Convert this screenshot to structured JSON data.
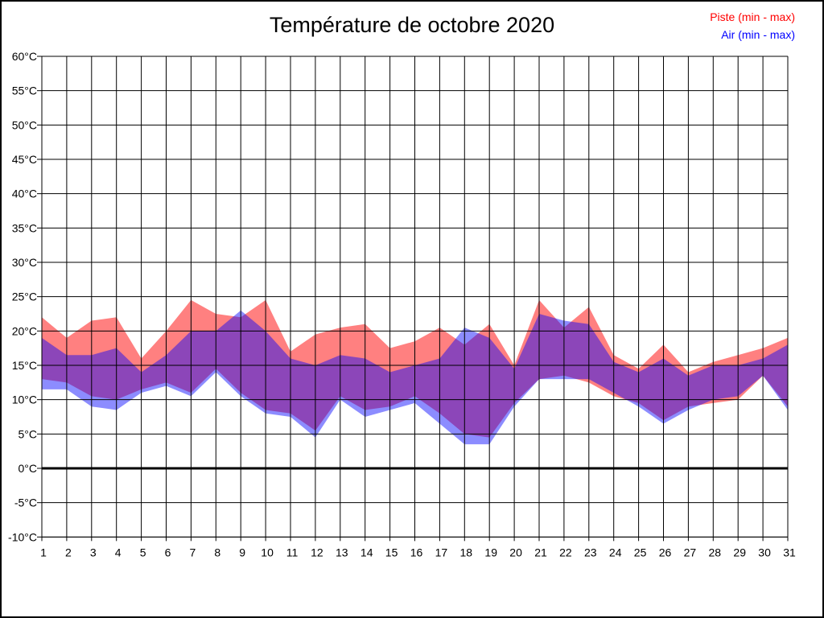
{
  "chart_data": {
    "type": "area",
    "title": "Température de octobre 2020",
    "xlabel": "",
    "ylabel": "",
    "x": [
      1,
      2,
      3,
      4,
      5,
      6,
      7,
      8,
      9,
      10,
      11,
      12,
      13,
      14,
      15,
      16,
      17,
      18,
      19,
      20,
      21,
      22,
      23,
      24,
      25,
      26,
      27,
      28,
      29,
      30,
      31
    ],
    "ylim": [
      -10,
      60
    ],
    "ytick_step": 5,
    "ytick_labels": [
      "60°C",
      "55°C",
      "50°C",
      "45°C",
      "40°C",
      "35°C",
      "30°C",
      "25°C",
      "20°C",
      "15°C",
      "10°C",
      "5°C",
      "0°C",
      "-5°C",
      "-10°C"
    ],
    "grid": true,
    "zero_line": true,
    "legend_position": "top-right",
    "axis_color": "#000000",
    "series": [
      {
        "name": "Piste (min - max)",
        "band_name": "piste-band",
        "color": "#ff0000",
        "fill_color": "#ff8080",
        "fill_opacity": 1,
        "max": [
          22,
          19,
          21.5,
          22,
          16,
          20,
          24.5,
          22.5,
          22,
          24.5,
          17,
          19.5,
          20.5,
          21,
          17.5,
          18.5,
          20.5,
          18,
          21,
          15,
          24.5,
          20.5,
          23.5,
          16.5,
          14.5,
          18,
          14,
          15.5,
          16.5,
          17.5,
          19
        ],
        "min": [
          13,
          12.5,
          10.5,
          10,
          11.5,
          12.5,
          11,
          14.5,
          11,
          8.5,
          8,
          5.5,
          10.5,
          8.5,
          9,
          10.5,
          8,
          5,
          4.5,
          9.5,
          13,
          13.5,
          12.5,
          10.5,
          9.5,
          7,
          9,
          9.5,
          10,
          13.5,
          9
        ]
      },
      {
        "name": "Air (min - max)",
        "band_name": "air-band",
        "color": "#0000ff",
        "fill_color": "#0000ff",
        "fill_opacity": 0.45,
        "max": [
          19,
          16.5,
          16.5,
          17.5,
          14,
          16.5,
          20,
          20,
          23,
          20,
          16,
          15,
          16.5,
          16,
          14,
          15,
          16,
          20.5,
          19,
          14.5,
          22.5,
          21.5,
          21,
          15.5,
          14,
          16,
          13.5,
          15,
          15,
          16,
          18
        ],
        "min": [
          11.5,
          11.5,
          9,
          8.5,
          11,
          12,
          10.5,
          14,
          10.5,
          8,
          7.5,
          4.5,
          10,
          7.5,
          8.5,
          9.5,
          6.5,
          3.5,
          3.5,
          9,
          13,
          13,
          13,
          11,
          9,
          6.5,
          8.5,
          10,
          10.5,
          13.5,
          8.5
        ]
      }
    ]
  }
}
